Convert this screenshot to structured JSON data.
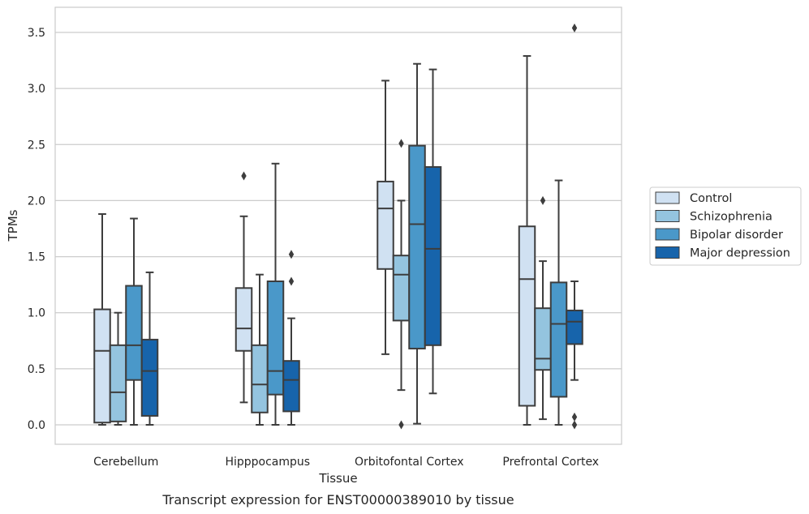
{
  "chart_data": {
    "type": "box",
    "caption": "Transcript expression for ENST00000389010 by tissue",
    "xlabel": "Tissue",
    "ylabel": "TPMs",
    "ylim": [
      -0.17,
      3.69
    ],
    "yticks": [
      "0.0",
      "0.5",
      "1.0",
      "1.5",
      "2.0",
      "2.5",
      "3.0",
      "3.5"
    ],
    "ytick_values": [
      0,
      0.5,
      1.0,
      1.5,
      2.0,
      2.5,
      3.0,
      3.5
    ],
    "grid": "horizontal",
    "legend_position": "right",
    "categories": [
      "Cerebellum",
      "Hipppocampus",
      "Orbitofontal Cortex",
      "Prefrontal Cortex"
    ],
    "series": [
      {
        "name": "Control",
        "color": "#d0e1f2",
        "boxes": [
          {
            "q1": 0.02,
            "median": 0.66,
            "q3": 1.03,
            "whisker_low": 0.0,
            "whisker_high": 1.88,
            "outliers": []
          },
          {
            "q1": 0.66,
            "median": 0.86,
            "q3": 1.22,
            "whisker_low": 0.2,
            "whisker_high": 1.86,
            "outliers": [
              2.22
            ]
          },
          {
            "q1": 1.39,
            "median": 1.93,
            "q3": 2.17,
            "whisker_low": 0.63,
            "whisker_high": 3.07,
            "outliers": []
          },
          {
            "q1": 0.17,
            "median": 1.3,
            "q3": 1.77,
            "whisker_low": 0.0,
            "whisker_high": 3.29,
            "outliers": []
          }
        ]
      },
      {
        "name": "Schizophrenia",
        "color": "#94c4df",
        "boxes": [
          {
            "q1": 0.03,
            "median": 0.29,
            "q3": 0.71,
            "whisker_low": 0.0,
            "whisker_high": 1.0,
            "outliers": []
          },
          {
            "q1": 0.11,
            "median": 0.36,
            "q3": 0.71,
            "whisker_low": 0.0,
            "whisker_high": 1.34,
            "outliers": []
          },
          {
            "q1": 0.93,
            "median": 1.34,
            "q3": 1.51,
            "whisker_low": 0.31,
            "whisker_high": 2.0,
            "outliers": [
              2.51,
              0.0
            ]
          },
          {
            "q1": 0.49,
            "median": 0.59,
            "q3": 1.04,
            "whisker_low": 0.05,
            "whisker_high": 1.46,
            "outliers": [
              2.0
            ]
          }
        ]
      },
      {
        "name": "Bipolar disorder",
        "color": "#4a98c9",
        "boxes": [
          {
            "q1": 0.4,
            "median": 0.71,
            "q3": 1.24,
            "whisker_low": 0.0,
            "whisker_high": 1.84,
            "outliers": []
          },
          {
            "q1": 0.27,
            "median": 0.48,
            "q3": 1.28,
            "whisker_low": 0.0,
            "whisker_high": 2.33,
            "outliers": []
          },
          {
            "q1": 0.68,
            "median": 1.79,
            "q3": 2.49,
            "whisker_low": 0.01,
            "whisker_high": 3.22,
            "outliers": []
          },
          {
            "q1": 0.25,
            "median": 0.9,
            "q3": 1.27,
            "whisker_low": 0.0,
            "whisker_high": 2.18,
            "outliers": []
          }
        ]
      },
      {
        "name": "Major depression",
        "color": "#1764ab",
        "boxes": [
          {
            "q1": 0.08,
            "median": 0.48,
            "q3": 0.76,
            "whisker_low": 0.0,
            "whisker_high": 1.36,
            "outliers": []
          },
          {
            "q1": 0.12,
            "median": 0.4,
            "q3": 0.57,
            "whisker_low": 0.0,
            "whisker_high": 0.95,
            "outliers": [
              1.52,
              1.28
            ]
          },
          {
            "q1": 0.71,
            "median": 1.57,
            "q3": 2.3,
            "whisker_low": 0.28,
            "whisker_high": 3.17,
            "outliers": []
          },
          {
            "q1": 0.72,
            "median": 0.92,
            "q3": 1.02,
            "whisker_low": 0.4,
            "whisker_high": 1.28,
            "outliers": [
              3.54,
              0.07,
              0.0
            ]
          }
        ]
      }
    ]
  }
}
